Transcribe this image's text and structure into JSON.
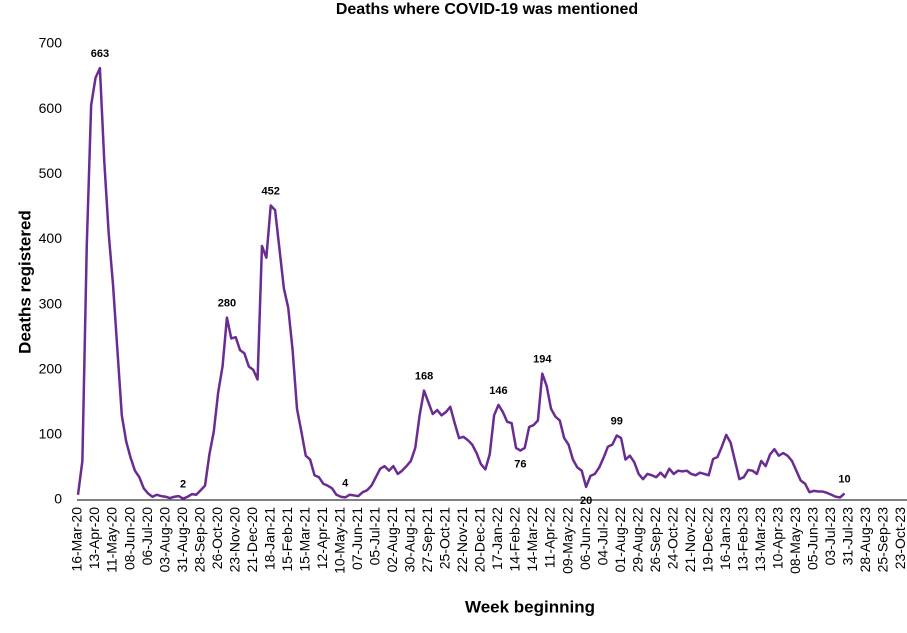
{
  "chart_data": {
    "type": "line",
    "title": "Deaths where COVID-19 was mentioned",
    "x_label": "Week beginning",
    "y_label": "Deaths registered",
    "ylim": [
      0,
      700
    ],
    "yticks": [
      0,
      100,
      200,
      300,
      400,
      500,
      600,
      700
    ],
    "grid": false,
    "categories": [
      "16-Mar-20",
      null,
      null,
      null,
      "13-Apr-20",
      null,
      null,
      null,
      "11-May-20",
      null,
      null,
      null,
      "08-Jun-20",
      null,
      null,
      null,
      "06-Jul-20",
      null,
      null,
      null,
      "03-Aug-20",
      null,
      null,
      null,
      "31-Aug-20",
      null,
      null,
      null,
      "28-Sep-20",
      null,
      null,
      null,
      "26-Oct-20",
      null,
      null,
      null,
      "23-Nov-20",
      null,
      null,
      null,
      "21-Dec-20",
      null,
      null,
      null,
      "18-Jan-21",
      null,
      null,
      null,
      "15-Feb-21",
      null,
      null,
      null,
      "15-Mar-21",
      null,
      null,
      null,
      "12-Apr-21",
      null,
      null,
      null,
      "10-May-21",
      null,
      null,
      null,
      "07-Jun-21",
      null,
      null,
      null,
      "05-Jul-21",
      null,
      null,
      null,
      "02-Aug-21",
      null,
      null,
      null,
      "30-Aug-21",
      null,
      null,
      null,
      "27-Sep-21",
      null,
      null,
      null,
      "25-Oct-21",
      null,
      null,
      null,
      "22-Nov-21",
      null,
      null,
      null,
      "20-Dec-21",
      null,
      null,
      null,
      "17-Jan-22",
      null,
      null,
      null,
      "14-Feb-22",
      null,
      null,
      null,
      "14-Mar-22",
      null,
      null,
      null,
      "11-Apr-22",
      null,
      null,
      null,
      "09-May-22",
      null,
      null,
      null,
      "06-Jun-22",
      null,
      null,
      null,
      "04-Jul-22",
      null,
      null,
      null,
      "01-Aug-22",
      null,
      null,
      null,
      "29-Aug-22",
      null,
      null,
      null,
      "26-Sep-22",
      null,
      null,
      null,
      "24-Oct-22",
      null,
      null,
      null,
      "21-Nov-22",
      null,
      null,
      null,
      "19-Dec-22",
      null,
      null,
      null,
      "16-Jan-23",
      null,
      null,
      null,
      "13-Feb-23",
      null,
      null,
      null,
      "13-Mar-23",
      null,
      null,
      null,
      "10-Apr-23",
      null,
      null,
      null,
      "08-May-23",
      null,
      null,
      null,
      "05-Jun-23",
      null,
      null,
      null,
      "03-Jul-23",
      null,
      null,
      null,
      "31-Jul-23",
      null,
      null,
      null,
      "28-Aug-23",
      null,
      null,
      null,
      "25-Sep-23",
      null,
      null,
      null,
      "23-Oct-23"
    ],
    "series": [
      {
        "name": "Deaths registered",
        "color": "#6b2c91",
        "values": [
          8,
          60,
          390,
          606,
          648,
          663,
          520,
          410,
          330,
          230,
          130,
          90,
          65,
          45,
          35,
          18,
          10,
          5,
          8,
          6,
          5,
          3,
          5,
          6,
          2,
          5,
          9,
          8,
          15,
          22,
          70,
          105,
          165,
          205,
          280,
          248,
          250,
          230,
          225,
          205,
          200,
          185,
          390,
          372,
          452,
          445,
          385,
          325,
          295,
          230,
          140,
          105,
          68,
          62,
          38,
          35,
          25,
          22,
          18,
          8,
          5,
          4,
          8,
          7,
          6,
          12,
          15,
          22,
          35,
          48,
          52,
          45,
          52,
          40,
          45,
          52,
          60,
          80,
          130,
          168,
          150,
          132,
          138,
          130,
          135,
          143,
          118,
          95,
          97,
          92,
          85,
          72,
          55,
          47,
          70,
          130,
          146,
          135,
          120,
          118,
          80,
          76,
          80,
          112,
          115,
          122,
          194,
          175,
          140,
          128,
          122,
          95,
          85,
          62,
          50,
          45,
          20,
          37,
          40,
          50,
          65,
          82,
          85,
          99,
          95,
          62,
          68,
          58,
          40,
          32,
          40,
          38,
          35,
          42,
          35,
          48,
          40,
          45,
          44,
          45,
          40,
          38,
          42,
          40,
          38,
          63,
          66,
          82,
          100,
          88,
          60,
          32,
          35,
          46,
          45,
          40,
          60,
          52,
          70,
          78,
          68,
          72,
          68,
          60,
          45,
          30,
          25,
          12,
          14,
          13,
          13,
          11,
          8,
          5,
          4,
          10,
          null,
          null,
          null,
          null,
          null,
          null,
          null,
          null,
          null,
          null,
          null,
          null,
          null
        ],
        "value_labels": [
          null,
          null,
          null,
          null,
          null,
          "663",
          null,
          null,
          null,
          null,
          null,
          null,
          null,
          null,
          null,
          null,
          null,
          null,
          null,
          null,
          null,
          null,
          null,
          null,
          "2",
          null,
          null,
          null,
          null,
          null,
          null,
          null,
          null,
          null,
          "280",
          null,
          null,
          null,
          null,
          null,
          null,
          null,
          null,
          null,
          "452",
          null,
          null,
          null,
          null,
          null,
          null,
          null,
          null,
          null,
          null,
          null,
          null,
          null,
          null,
          null,
          null,
          "4",
          null,
          null,
          null,
          null,
          null,
          null,
          null,
          null,
          null,
          null,
          null,
          null,
          null,
          null,
          null,
          null,
          null,
          "168",
          null,
          null,
          null,
          null,
          null,
          null,
          null,
          null,
          null,
          null,
          null,
          null,
          null,
          null,
          null,
          null,
          "146",
          null,
          null,
          null,
          null,
          "76",
          null,
          null,
          null,
          null,
          "194",
          null,
          null,
          null,
          null,
          null,
          null,
          null,
          null,
          null,
          "20",
          null,
          null,
          null,
          null,
          null,
          null,
          "99",
          null,
          null,
          null,
          null,
          null,
          null,
          null,
          null,
          null,
          null,
          null,
          null,
          null,
          null,
          null,
          null,
          null,
          null,
          null,
          null,
          null,
          null,
          null,
          null,
          null,
          null,
          null,
          null,
          null,
          null,
          null,
          null,
          null,
          null,
          null,
          null,
          null,
          null,
          null,
          null,
          null,
          null,
          null,
          null,
          null,
          null,
          null,
          null,
          null,
          null,
          null,
          "10",
          null,
          null,
          null,
          null,
          null,
          null,
          null,
          null,
          null,
          null,
          null,
          null,
          null
        ]
      }
    ]
  }
}
